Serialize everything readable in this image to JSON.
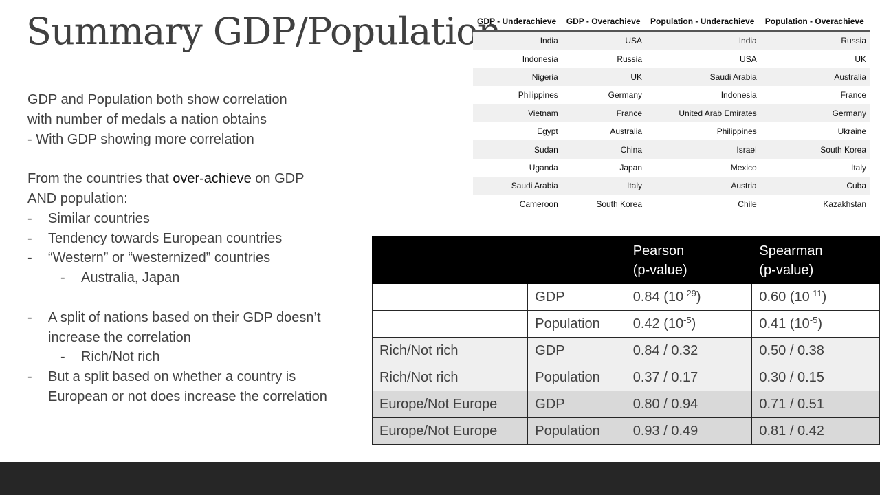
{
  "slide": {
    "title": "Summary GDP/Population",
    "para1": [
      "GDP and Population both show correlation",
      "with number of medals a nation obtains",
      "- With GDP showing more correlation"
    ],
    "para2": {
      "before": "From the countries that ",
      "emphasis": "over-achieve",
      "after": " on GDP",
      "line2": "AND population:"
    },
    "bullets1": [
      "Similar countries",
      "Tendency towards European countries",
      "“Western” or “westernized” countries"
    ],
    "sub1": "Australia, Japan",
    "bullets2": [
      "A split of nations based on their GDP doesn’t increase the correlation"
    ],
    "sub2": "Rich/Not rich",
    "bullets3": [
      "But a split based on whether a country is European or not does increase the correlation"
    ],
    "dash": "-"
  },
  "countries_table": {
    "headers": [
      "GDP - Underachieve",
      "GDP - Overachieve",
      "Population - Underachieve",
      "Population - Overachieve"
    ],
    "rows": [
      [
        "India",
        "USA",
        "India",
        "Russia"
      ],
      [
        "Indonesia",
        "Russia",
        "USA",
        "UK"
      ],
      [
        "Nigeria",
        "UK",
        "Saudi Arabia",
        "Australia"
      ],
      [
        "Philippines",
        "Germany",
        "Indonesia",
        "France"
      ],
      [
        "Vietnam",
        "France",
        "United Arab Emirates",
        "Germany"
      ],
      [
        "Egypt",
        "Australia",
        "Philippines",
        "Ukraine"
      ],
      [
        "Sudan",
        "China",
        "Israel",
        "South Korea"
      ],
      [
        "Uganda",
        "Japan",
        "Mexico",
        "Italy"
      ],
      [
        "Saudi Arabia",
        "Italy",
        "Austria",
        "Cuba"
      ],
      [
        "Cameroon",
        "South Korea",
        "Chile",
        "Kazakhstan"
      ]
    ]
  },
  "correlation_table": {
    "headers": [
      "",
      "",
      "Pearson\n(p-value)",
      "Spearman\n(p-value)"
    ],
    "rows": [
      [
        "",
        "GDP",
        {
          "base": "0.84 (10",
          "exp": "-29",
          "tail": ")"
        },
        {
          "base": "0.60 (10",
          "exp": "-11",
          "tail": ")"
        }
      ],
      [
        "",
        "Population",
        {
          "base": "0.42 (10",
          "exp": "-5",
          "tail": ")"
        },
        {
          "base": "0.41 (10",
          "exp": "-5",
          "tail": ")"
        }
      ],
      [
        "Rich/Not rich",
        "GDP",
        "0.84 / 0.32",
        "0.50 / 0.38"
      ],
      [
        "Rich/Not rich",
        "Population",
        "0.37 / 0.17",
        "0.30 / 0.15"
      ],
      [
        "Europe/Not Europe",
        "GDP",
        "0.80 / 0.94",
        "0.71 / 0.51"
      ],
      [
        "Europe/Not Europe",
        "Population",
        "0.93 / 0.49",
        "0.81 / 0.42"
      ]
    ]
  },
  "colors": {
    "text": "#404040",
    "header_bg": "#000000",
    "footer_bar": "#262626"
  }
}
